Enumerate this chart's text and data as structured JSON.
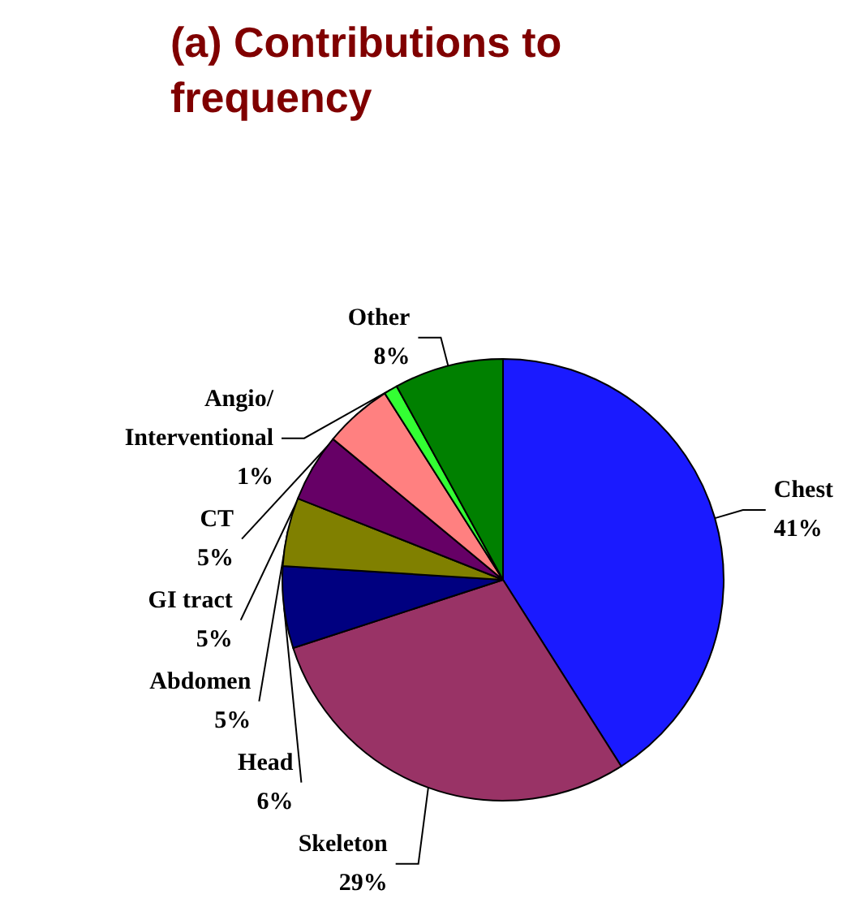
{
  "chart_data": {
    "type": "pie",
    "title": "(a) Contributions to frequency",
    "categories": [
      "Chest",
      "Skeleton",
      "Head",
      "Abdomen",
      "GI tract",
      "CT",
      "Angio/Interventional",
      "Other"
    ],
    "values": [
      41,
      29,
      6,
      5,
      5,
      5,
      1,
      8
    ],
    "colors": [
      "#1a1aff",
      "#993366",
      "#000080",
      "#808000",
      "#660066",
      "#ff8080",
      "#33ff33",
      "#008000"
    ],
    "value_labels": [
      "41%",
      "29%",
      "6%",
      "5%",
      "5%",
      "5%",
      "1%",
      "8%"
    ],
    "legend": false
  }
}
